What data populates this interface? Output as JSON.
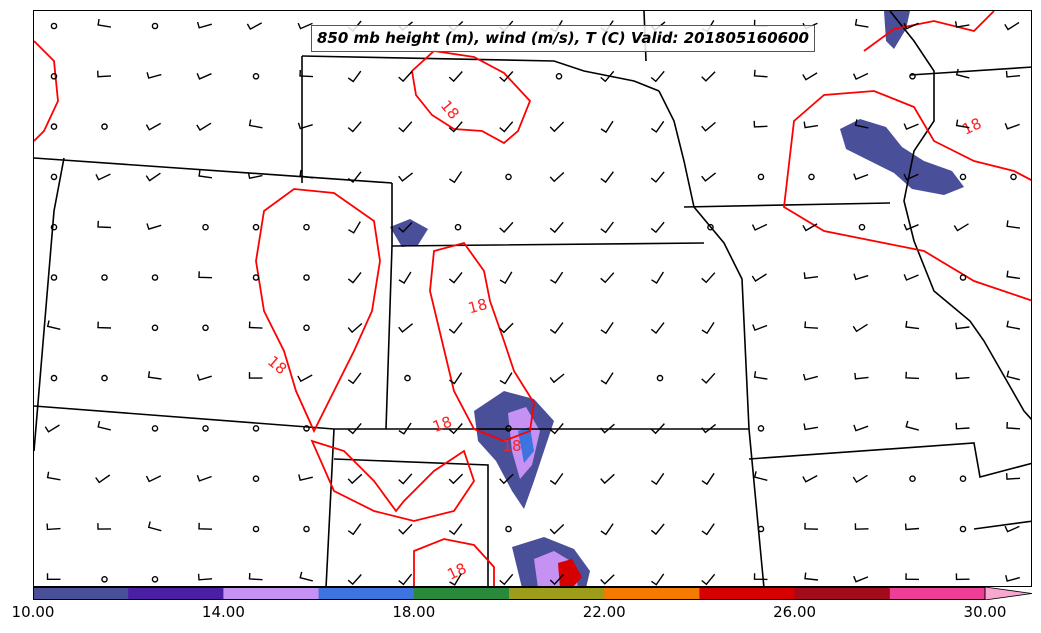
{
  "title": "850 mb height (m), wind (m/s), T (C) Valid: 201805160600",
  "colorbar": {
    "tick_labels": [
      "10.00",
      "14.00",
      "18.00",
      "22.00",
      "26.00",
      "30.00"
    ],
    "tick_values": [
      10,
      14,
      18,
      22,
      26,
      30
    ],
    "min": 10,
    "max": 30,
    "bin_colors": [
      "#4a4f9a",
      "#4b1fa3",
      "#c591f2",
      "#3d74e0",
      "#2a8a3c",
      "#9d9d1b",
      "#f57a00",
      "#d60000",
      "#a10b1c",
      "#ef3e96"
    ],
    "extend_color": "#f7a8cf"
  },
  "contour": {
    "labels": [
      "18",
      "18",
      "18",
      "18",
      "18",
      "18",
      "18"
    ],
    "color": "#ff0000"
  },
  "wind_barb_color": "#000000",
  "boundary_color": "#000000"
}
